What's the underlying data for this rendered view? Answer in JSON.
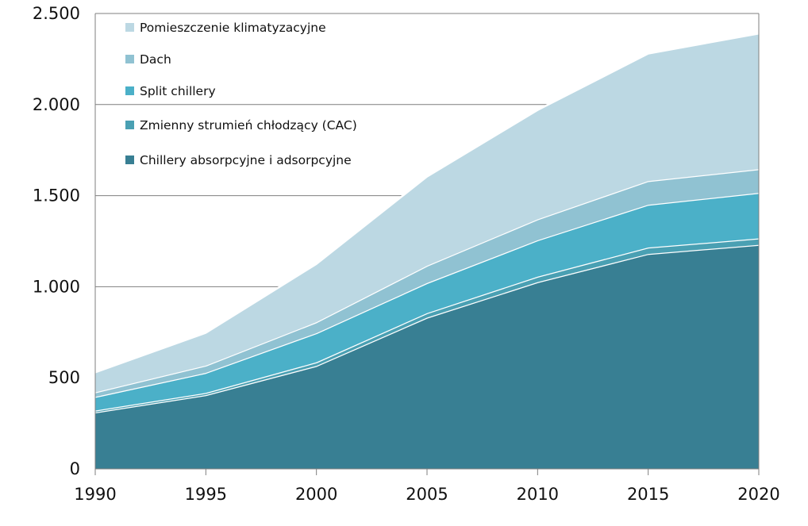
{
  "chart_data": {
    "type": "area",
    "stacked": true,
    "x": [
      1990,
      1995,
      2000,
      2005,
      2010,
      2015,
      2020
    ],
    "x_tick_labels": [
      "1990",
      "1995",
      "2000",
      "2005",
      "2010",
      "2015",
      "2020"
    ],
    "y_tick_labels": [
      "0",
      "500",
      "1.000",
      "1.500",
      "2.000",
      "2.500"
    ],
    "y_ticks": [
      0,
      500,
      1000,
      1500,
      2000,
      2500
    ],
    "ylim": [
      0,
      2500
    ],
    "grid": "horizontal",
    "legend_position": "top-left",
    "series": [
      {
        "name": "Chillery absorpcyjne i adsorpcyjne",
        "color": "#387f93",
        "values": [
          310,
          405,
          565,
          830,
          1025,
          1180,
          1230
        ]
      },
      {
        "name": "Zmienny strumień chłodzący  (CAC)",
        "color": "#4aa0b3",
        "values": [
          10,
          12,
          20,
          25,
          30,
          35,
          35
        ]
      },
      {
        "name": "Split chillery",
        "color": "#4bb0c8",
        "values": [
          75,
          110,
          160,
          165,
          200,
          235,
          250
        ]
      },
      {
        "name": "Dach",
        "color": "#90c2d2",
        "values": [
          25,
          40,
          60,
          95,
          115,
          130,
          130
        ]
      },
      {
        "name": "Pomieszczenie klimatyzacyjne",
        "color": "#bcd8e3",
        "values": [
          110,
          180,
          320,
          490,
          600,
          700,
          745
        ]
      }
    ]
  }
}
